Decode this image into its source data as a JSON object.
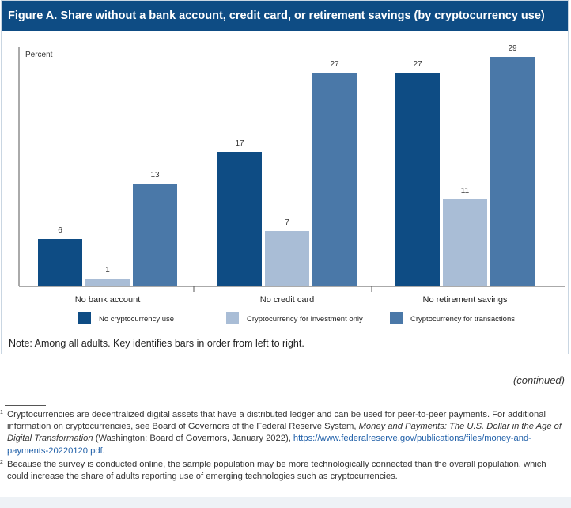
{
  "figure": {
    "title": "Figure A. Share without a bank account, credit card, or retirement savings (by cryptocurrency use)",
    "note": "Note: Among all adults. Key identifies bars in order from left to right."
  },
  "chart_data": {
    "type": "bar",
    "ylabel": "Percent",
    "ylim": [
      0,
      30
    ],
    "grid": false,
    "legend_position": "bottom",
    "categories": [
      "No bank account",
      "No credit card",
      "No retirement savings"
    ],
    "series": [
      {
        "name": "No cryptocurrency use",
        "values": [
          6,
          17,
          27
        ],
        "color": "#0e4c84"
      },
      {
        "name": "Cryptocurrency for investment only",
        "values": [
          1,
          7,
          11
        ],
        "color": "#a9bdd6"
      },
      {
        "name": "Cryptocurrency for transactions",
        "values": [
          13,
          27,
          29
        ],
        "color": "#4a78a8"
      }
    ]
  },
  "continued": "(continued)",
  "footnotes": [
    {
      "marker": "1",
      "text": "Cryptocurrencies are decentralized digital assets that have a distributed ledger and can be used for peer-to-peer payments. For additional information on cryptocurrencies, see Board of Governors of the Federal Reserve System,",
      "italic": "Money and Payments: The U.S. Dollar in the Age of Digital Transformation",
      "text2": "(Washington: Board of Governors, January 2022),",
      "link": "https://www.federalreserve.gov/publications/files/money-and-payments-20220120.pdf",
      "end": "."
    },
    {
      "marker": "2",
      "text": "Because the survey is conducted online, the sample population may be more technologically connected than the overall population, which could increase the share of adults reporting use of emerging technologies such as cryptocurrencies."
    }
  ]
}
